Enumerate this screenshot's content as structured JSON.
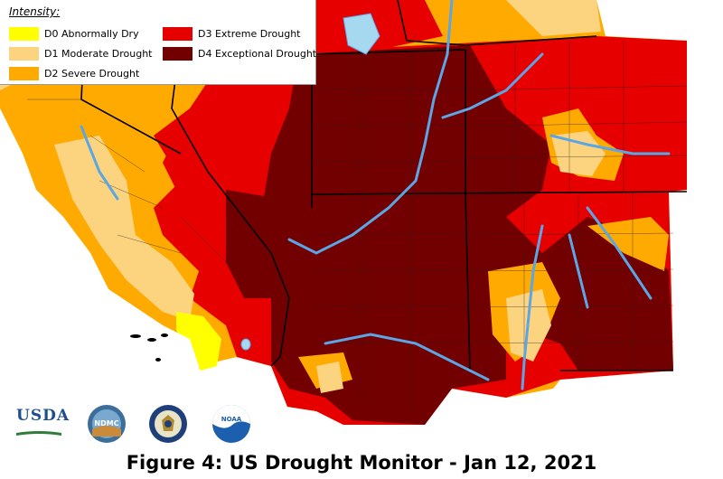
{
  "legend": {
    "title": "Intensity:",
    "items": [
      {
        "code": "D0",
        "label": "D0 Abnormally Dry",
        "color": "#ffff00"
      },
      {
        "code": "D1",
        "label": "D1 Moderate Drought",
        "color": "#fcd37f"
      },
      {
        "code": "D2",
        "label": "D2 Severe Drought",
        "color": "#ffaa00"
      },
      {
        "code": "D3",
        "label": "D3 Extreme Drought",
        "color": "#e60000"
      },
      {
        "code": "D4",
        "label": "D4 Exceptional Drought",
        "color": "#730000"
      }
    ]
  },
  "caption": "Figure 4: US Drought Monitor - Jan 12, 2021",
  "logos": [
    {
      "name": "usda-logo",
      "text": "USDA"
    },
    {
      "name": "ndmc-logo",
      "text": "NDMC"
    },
    {
      "name": "doc-seal"
    },
    {
      "name": "noaa-logo",
      "text": "NOAA"
    }
  ],
  "colors": {
    "water": "#5aa6e6",
    "lake": "#a6d8f0",
    "border": "#000000",
    "background": "#ffffff"
  }
}
